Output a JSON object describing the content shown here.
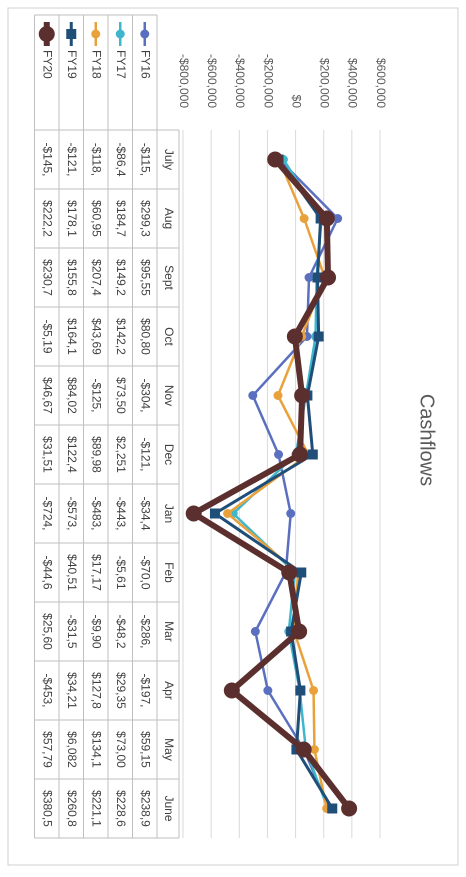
{
  "chart_data": {
    "type": "line",
    "title": "Cashflows",
    "categories": [
      "July",
      "Aug",
      "Sept",
      "Oct",
      "Nov",
      "Dec",
      "Jan",
      "Feb",
      "Mar",
      "Apr",
      "May",
      "June"
    ],
    "series": [
      {
        "name": "FY16",
        "color": "#5b6fc0",
        "marker": "circle",
        "line_width": 2.5,
        "values": [
          -115000,
          299300,
          95550,
          80800,
          -304000,
          -121000,
          -34400,
          -70000,
          -286000,
          -197000,
          59150,
          238900
        ],
        "value_labels": [
          "-$115,",
          "$299,3",
          "$95,55",
          "$80,80",
          "-$304,",
          "-$121,",
          "-$34,4",
          "-$70,0",
          "-$286,",
          "-$197,",
          "$59,15",
          "$238,9"
        ]
      },
      {
        "name": "FY17",
        "color": "#3fb6cc",
        "marker": "circle",
        "line_width": 2.5,
        "values": [
          -86400,
          184700,
          149200,
          142200,
          73500,
          2251,
          -443000,
          -5610,
          -48200,
          29350,
          73000,
          228600
        ],
        "value_labels": [
          "-$86,4",
          "$184,7",
          "$149,2",
          "$142,2",
          "$73,50",
          "$2,251",
          "-$443,",
          "-$5,61",
          "-$48,2",
          "$29,35",
          "$73,00",
          "$228,6"
        ]
      },
      {
        "name": "FY18",
        "color": "#e9a23b",
        "marker": "circle",
        "line_width": 2.5,
        "values": [
          -118000,
          60950,
          207400,
          43690,
          -125000,
          89980,
          -483000,
          17170,
          -9900,
          127800,
          134100,
          221100
        ],
        "value_labels": [
          "-$118,",
          "$60,95",
          "$207,4",
          "$43,69",
          "-$125,",
          "$89,98",
          "-$483,",
          "$17,17",
          "-$9,90",
          "$127,8",
          "$134,1",
          "$221,1"
        ]
      },
      {
        "name": "FY19",
        "color": "#1f4e79",
        "marker": "square",
        "line_width": 3,
        "values": [
          -121000,
          178100,
          155800,
          164100,
          84020,
          122400,
          -573000,
          40510,
          -31500,
          34210,
          6082,
          260800
        ],
        "value_labels": [
          "-$121,",
          "$178,1",
          "$155,8",
          "$164,1",
          "$84,02",
          "$122,4",
          "-$573,",
          "$40,51",
          "-$31,5",
          "$34,21",
          "$6,082",
          "$260,8"
        ]
      },
      {
        "name": "FY20",
        "color": "#5b2f2d",
        "marker": "circle",
        "line_width": 6,
        "values": [
          -145000,
          222200,
          230700,
          -5190,
          46670,
          31510,
          -724000,
          -44600,
          25600,
          -453000,
          57790,
          380500
        ],
        "value_labels": [
          "-$145,",
          "$222,2",
          "$230,7",
          "-$5,19",
          "$46,67",
          "$31,51",
          "-$724,",
          "-$44,6",
          "$25,60",
          "-$453,",
          "$57,79",
          "$380,5"
        ]
      }
    ],
    "ylim": [
      -800000,
      600000
    ],
    "yticks": [
      {
        "value": -800000,
        "label": "-$800,000"
      },
      {
        "value": -600000,
        "label": "-$600,000"
      },
      {
        "value": -400000,
        "label": "-$400,000"
      },
      {
        "value": -200000,
        "label": "-$200,000"
      },
      {
        "value": 0,
        "label": "$0"
      },
      {
        "value": 200000,
        "label": "$200,000"
      },
      {
        "value": 400000,
        "label": "$400,000"
      },
      {
        "value": 600000,
        "label": "$600,000"
      }
    ],
    "grid": true,
    "data_table": true
  }
}
